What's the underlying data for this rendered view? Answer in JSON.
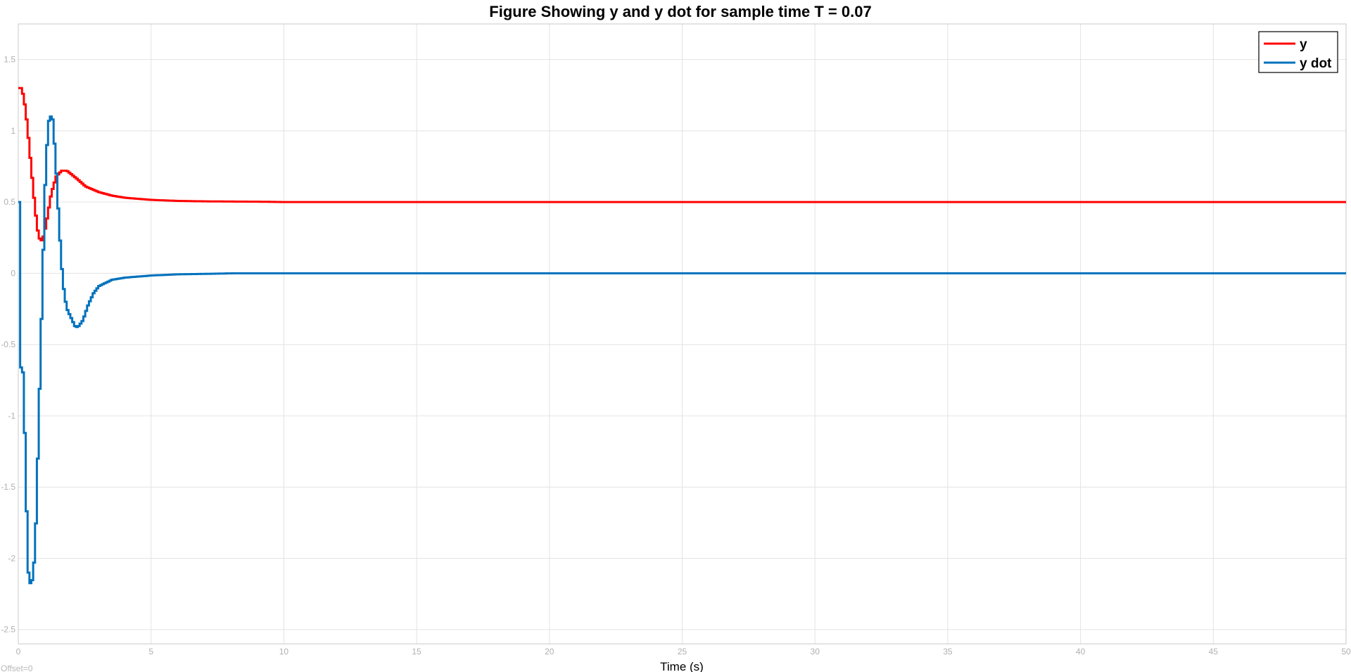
{
  "chart_data": {
    "type": "line",
    "title": "Figure Showing y and y dot for sample time T = 0.07",
    "xlabel": "Time (s)",
    "ylabel": "",
    "xlim": [
      0,
      50
    ],
    "ylim": [
      -2.6,
      1.75
    ],
    "xticks": [
      "0",
      "5",
      "10",
      "15",
      "20",
      "25",
      "30",
      "35",
      "40",
      "45",
      "50"
    ],
    "yticks": [
      "1.5",
      "1",
      "0.5",
      "0",
      "-0.5",
      "-1",
      "-1.5",
      "-2",
      "-2.5"
    ],
    "grid": true,
    "legend_position": "top-right",
    "offset_label": "Offset=0",
    "sample_time": 0.07,
    "series": [
      {
        "name": "y",
        "color": "#ff0000",
        "points": [
          [
            0,
            1.3
          ],
          [
            0.1,
            1.3
          ],
          [
            0.2,
            1.2
          ],
          [
            0.3,
            1.05
          ],
          [
            0.4,
            0.85
          ],
          [
            0.5,
            0.65
          ],
          [
            0.6,
            0.45
          ],
          [
            0.7,
            0.3
          ],
          [
            0.8,
            0.22
          ],
          [
            0.9,
            0.25
          ],
          [
            1.0,
            0.33
          ],
          [
            1.1,
            0.44
          ],
          [
            1.2,
            0.55
          ],
          [
            1.3,
            0.62
          ],
          [
            1.4,
            0.68
          ],
          [
            1.6,
            0.72
          ],
          [
            1.8,
            0.72
          ],
          [
            2.0,
            0.69
          ],
          [
            2.2,
            0.66
          ],
          [
            2.5,
            0.61
          ],
          [
            3.0,
            0.57
          ],
          [
            3.5,
            0.545
          ],
          [
            4.0,
            0.53
          ],
          [
            5.0,
            0.515
          ],
          [
            6.0,
            0.508
          ],
          [
            7.0,
            0.505
          ],
          [
            9.3,
            0.502
          ],
          [
            10,
            0.5
          ],
          [
            50,
            0.5
          ]
        ]
      },
      {
        "name": "y dot",
        "color": "#0072bd",
        "points": [
          [
            0,
            0.5
          ],
          [
            0.05,
            -0.65
          ],
          [
            0.15,
            -0.7
          ],
          [
            0.25,
            -1.4
          ],
          [
            0.3,
            -1.85
          ],
          [
            0.35,
            -2.1
          ],
          [
            0.4,
            -2.18
          ],
          [
            0.5,
            -2.15
          ],
          [
            0.6,
            -1.95
          ],
          [
            0.7,
            -1.3
          ],
          [
            0.8,
            -0.6
          ],
          [
            0.9,
            0.1
          ],
          [
            1.0,
            0.75
          ],
          [
            1.1,
            1.05
          ],
          [
            1.15,
            1.1
          ],
          [
            1.25,
            1.1
          ],
          [
            1.3,
            1.0
          ],
          [
            1.4,
            0.7
          ],
          [
            1.5,
            0.35
          ],
          [
            1.6,
            0.05
          ],
          [
            1.7,
            -0.15
          ],
          [
            1.8,
            -0.25
          ],
          [
            2.0,
            -0.33
          ],
          [
            2.1,
            -0.37
          ],
          [
            2.2,
            -0.38
          ],
          [
            2.4,
            -0.33
          ],
          [
            2.6,
            -0.22
          ],
          [
            2.8,
            -0.14
          ],
          [
            3.0,
            -0.09
          ],
          [
            3.5,
            -0.045
          ],
          [
            4.0,
            -0.03
          ],
          [
            5.0,
            -0.015
          ],
          [
            6.0,
            -0.007
          ],
          [
            7.3,
            -0.003
          ],
          [
            8,
            0
          ],
          [
            50,
            0
          ]
        ]
      }
    ]
  }
}
